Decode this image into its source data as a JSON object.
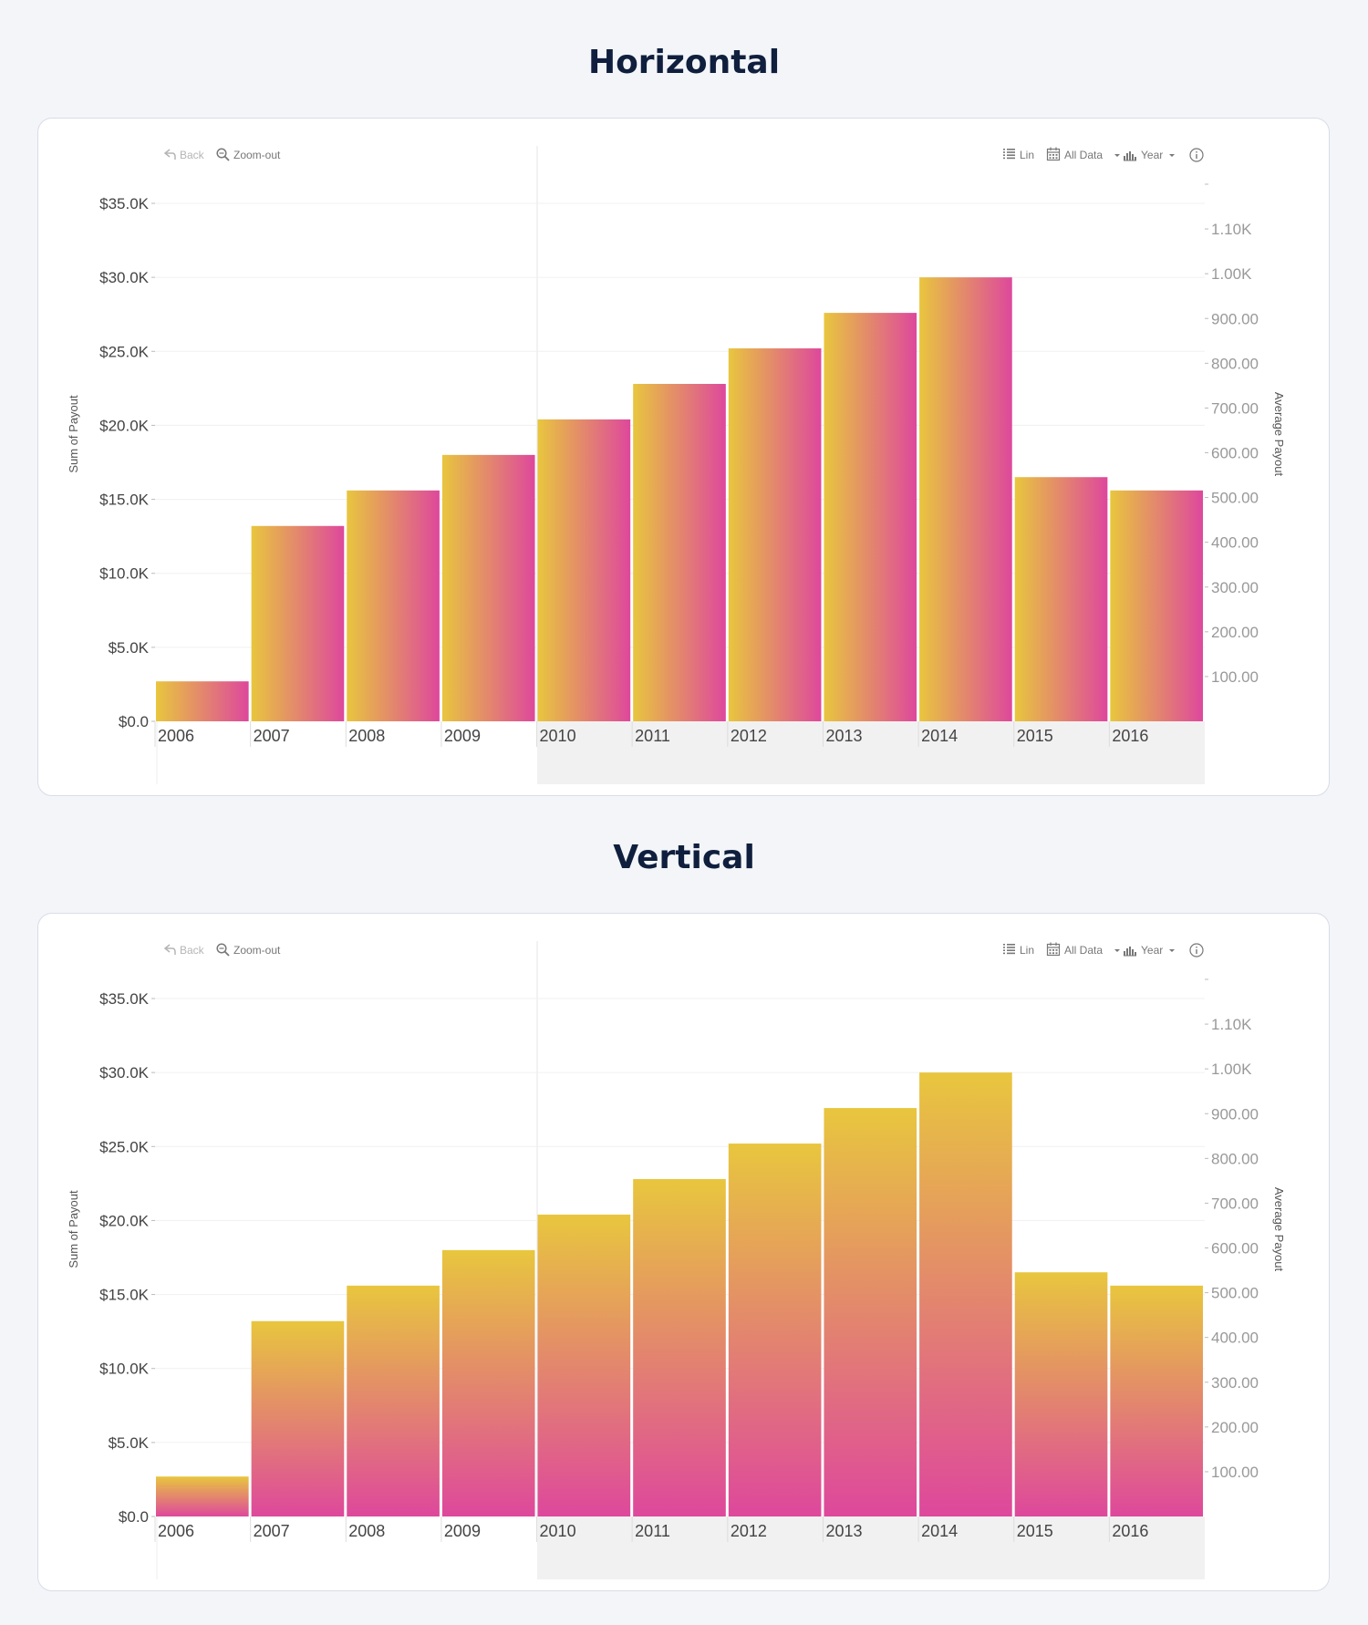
{
  "charts": [
    {
      "title": "Horizontal",
      "toolbar": {
        "back": "Back",
        "zoom_out": "Zoom-out",
        "scale": "Lin",
        "range": "All Data",
        "period": "Year"
      }
    },
    {
      "title": "Vertical",
      "toolbar": {
        "back": "Back",
        "zoom_out": "Zoom-out",
        "scale": "Lin",
        "range": "All Data",
        "period": "Year"
      }
    }
  ],
  "colors": {
    "gradient_start": "#e8c63e",
    "gradient_end": "#de489c"
  },
  "icons": [
    "back-icon",
    "zoom-out-icon",
    "list-icon",
    "calendar-icon",
    "bar-chart-icon",
    "info-icon",
    "caret-down-icon"
  ],
  "chart_data": [
    {
      "type": "bar",
      "title": "Horizontal",
      "gradient": "horizontal",
      "categories": [
        "2006",
        "2007",
        "2008",
        "2009",
        "2010",
        "2011",
        "2012",
        "2013",
        "2014",
        "2015",
        "2016"
      ],
      "values": [
        2700,
        13200,
        15600,
        18000,
        20400,
        22800,
        25200,
        27600,
        30000,
        16500,
        15600
      ],
      "ylabel": "Sum of Payout",
      "y2label": "Average Payout",
      "ylim": [
        0,
        35000
      ],
      "yticks": [
        "$0.0",
        "$5.0K",
        "$10.0K",
        "$15.0K",
        "$20.0K",
        "$25.0K",
        "$30.0K",
        "$35.0K"
      ],
      "y2lim": [
        0,
        1200
      ],
      "y2ticks": [
        "100.00",
        "200.00",
        "300.00",
        "400.00",
        "500.00",
        "600.00",
        "700.00",
        "800.00",
        "900.00",
        "1.00K",
        "1.10K"
      ],
      "grid": true
    },
    {
      "type": "bar",
      "title": "Vertical",
      "gradient": "vertical",
      "categories": [
        "2006",
        "2007",
        "2008",
        "2009",
        "2010",
        "2011",
        "2012",
        "2013",
        "2014",
        "2015",
        "2016"
      ],
      "values": [
        2700,
        13200,
        15600,
        18000,
        20400,
        22800,
        25200,
        27600,
        30000,
        16500,
        15600
      ],
      "ylabel": "Sum of Payout",
      "y2label": "Average Payout",
      "ylim": [
        0,
        35000
      ],
      "yticks": [
        "$0.0",
        "$5.0K",
        "$10.0K",
        "$15.0K",
        "$20.0K",
        "$25.0K",
        "$30.0K",
        "$35.0K"
      ],
      "y2lim": [
        0,
        1200
      ],
      "y2ticks": [
        "100.00",
        "200.00",
        "300.00",
        "400.00",
        "500.00",
        "600.00",
        "700.00",
        "800.00",
        "900.00",
        "1.00K",
        "1.10K"
      ],
      "grid": true
    }
  ]
}
